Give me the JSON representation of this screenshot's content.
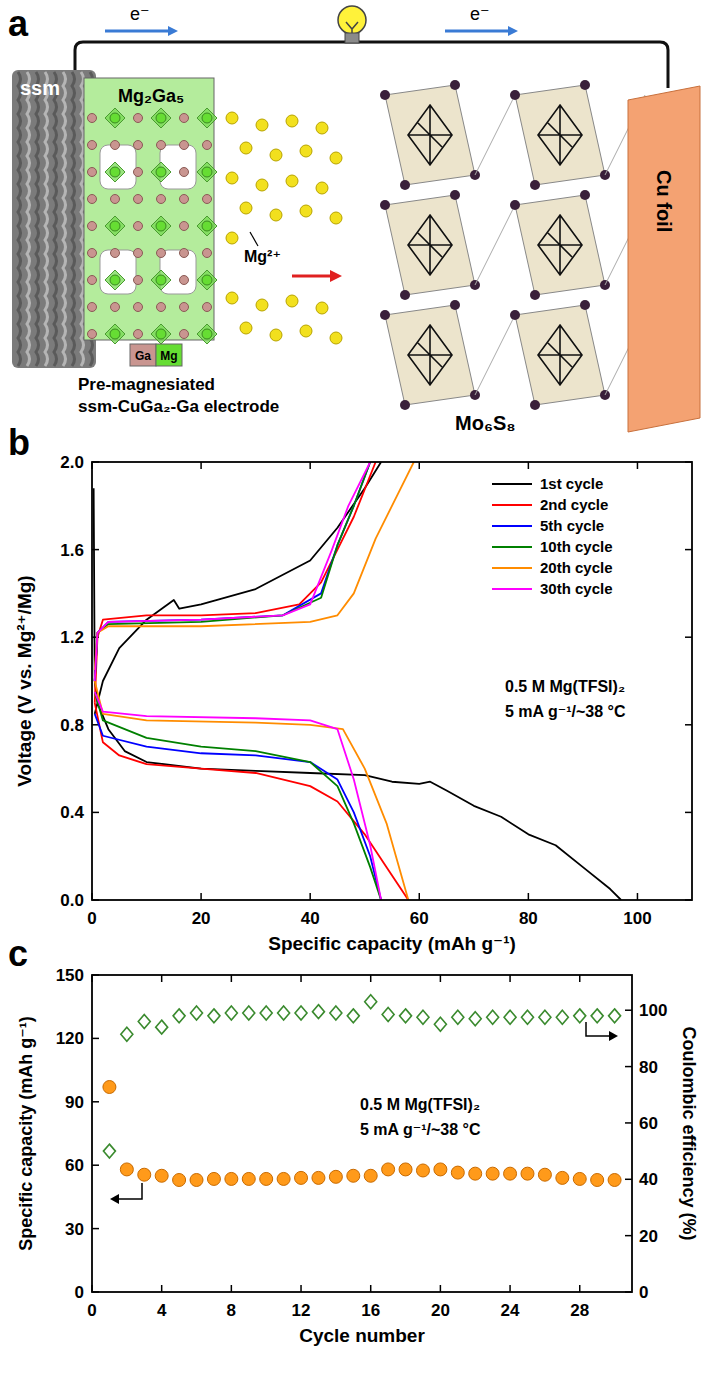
{
  "diagram": {
    "panel_label": "a",
    "electrons": [
      "e⁻",
      "e⁻"
    ],
    "mesh": "ssm",
    "phase": "Mg₂Ga₅",
    "atom_legend": [
      "Ga",
      "Mg"
    ],
    "electrode_label": [
      "Pre-magnesiated",
      "ssm-CuGa₂-Ga electrode"
    ],
    "ion": "Mg²⁺",
    "cathode": "Mo₆S₈",
    "collector": "Cu foil"
  },
  "chart_data": [
    {
      "panel_label": "b",
      "type": "line",
      "x_label": "Specific capacity (mAh g⁻¹)",
      "y_label": "Voltage (V vs. Mg²⁺/Mg)",
      "annotations": [
        "0.5 M Mg(TFSI)₂",
        "5 mA g⁻¹/~38 °C"
      ],
      "xlim": [
        0,
        110
      ],
      "ylim": [
        0,
        2.0
      ],
      "xticks": [
        0,
        20,
        40,
        60,
        80,
        100
      ],
      "yticks": [
        {
          "value": 0,
          "label": "0.0"
        },
        0.4,
        0.8,
        1.2,
        1.6,
        {
          "value": 2.0,
          "label": "2.0"
        }
      ],
      "legend": "top-right",
      "line_style": "solid",
      "series": [
        {
          "name": "1st cycle",
          "color": "#000000",
          "x": [
            0.3,
            0.5,
            1,
            3,
            6,
            10,
            20,
            30,
            40,
            50,
            55,
            60,
            62,
            65,
            70,
            75,
            80,
            85,
            90,
            95,
            97,
            97,
            0.5,
            2,
            5,
            10,
            15,
            16,
            20,
            30,
            40,
            45,
            50,
            53
          ],
          "values": [
            1.88,
            1.0,
            0.9,
            0.78,
            0.68,
            0.63,
            0.6,
            0.59,
            0.58,
            0.57,
            0.54,
            0.53,
            0.54,
            0.5,
            0.43,
            0.38,
            0.3,
            0.25,
            0.15,
            0.05,
            0.0,
            null,
            0.85,
            1.0,
            1.15,
            1.28,
            1.37,
            1.33,
            1.35,
            1.42,
            1.55,
            1.7,
            1.88,
            2.0
          ]
        },
        {
          "name": "2nd cycle",
          "color": "#ff0000",
          "x": [
            0.5,
            2,
            5,
            10,
            20,
            30,
            40,
            45,
            50,
            54,
            58,
            58,
            0.5,
            1,
            2,
            10,
            20,
            30,
            38,
            42,
            45,
            48,
            52
          ],
          "values": [
            0.9,
            0.72,
            0.66,
            0.62,
            0.6,
            0.58,
            0.52,
            0.45,
            0.3,
            0.15,
            0.0,
            null,
            0.9,
            1.2,
            1.28,
            1.3,
            1.3,
            1.31,
            1.35,
            1.45,
            1.6,
            1.75,
            2.0
          ]
        },
        {
          "name": "5th cycle",
          "color": "#0000ff",
          "x": [
            0.5,
            2,
            10,
            20,
            30,
            40,
            45,
            48,
            51,
            53,
            53,
            0.5,
            1,
            3,
            20,
            35,
            42,
            45,
            48,
            51
          ],
          "values": [
            0.85,
            0.75,
            0.7,
            0.67,
            0.66,
            0.63,
            0.55,
            0.4,
            0.2,
            0.0,
            null,
            1.0,
            1.22,
            1.27,
            1.28,
            1.3,
            1.4,
            1.62,
            1.8,
            2.0
          ]
        },
        {
          "name": "10th cycle",
          "color": "#008000",
          "x": [
            0.5,
            2,
            10,
            20,
            30,
            40,
            45,
            48,
            51,
            53,
            53,
            0.5,
            1,
            3,
            20,
            35,
            42,
            45,
            48,
            51
          ],
          "values": [
            0.95,
            0.82,
            0.74,
            0.7,
            0.68,
            0.63,
            0.52,
            0.35,
            0.15,
            0.0,
            null,
            1.0,
            1.22,
            1.26,
            1.27,
            1.3,
            1.38,
            1.62,
            1.8,
            2.0
          ]
        },
        {
          "name": "20th cycle",
          "color": "#ff8c00",
          "x": [
            0.5,
            2,
            10,
            30,
            40,
            46,
            50,
            54,
            58,
            58,
            0.5,
            1,
            3,
            20,
            40,
            45,
            48,
            52,
            56,
            59
          ],
          "values": [
            1.0,
            0.85,
            0.82,
            0.81,
            0.8,
            0.78,
            0.6,
            0.35,
            0.0,
            null,
            1.05,
            1.22,
            1.25,
            1.25,
            1.27,
            1.3,
            1.4,
            1.65,
            1.85,
            2.0
          ]
        },
        {
          "name": "30th cycle",
          "color": "#ff00ff",
          "x": [
            0.5,
            2,
            10,
            30,
            40,
            45,
            48,
            51,
            53,
            53,
            0.5,
            1,
            3,
            20,
            35,
            40,
            44,
            47,
            51
          ],
          "values": [
            0.95,
            0.86,
            0.84,
            0.83,
            0.82,
            0.78,
            0.55,
            0.25,
            0.0,
            null,
            1.0,
            1.22,
            1.27,
            1.28,
            1.3,
            1.35,
            1.6,
            1.8,
            2.0
          ]
        }
      ]
    },
    {
      "panel_label": "c",
      "type": "scatter",
      "x_label": "Cycle number",
      "y_label": "Specific capacity (mAh g⁻¹)",
      "y2_label": "Coulombic efficiency (%)",
      "annotations": [
        "0.5 M Mg(TFSI)₂",
        "5 mA g⁻¹/~38 °C"
      ],
      "xlim": [
        0,
        31
      ],
      "ylim": [
        0,
        150
      ],
      "y2lim": [
        0,
        112.5
      ],
      "xticks": [
        0,
        4,
        8,
        12,
        16,
        20,
        24,
        28
      ],
      "yticks": [
        0,
        30,
        60,
        90,
        120,
        150
      ],
      "y2ticks": [
        0,
        20,
        40,
        60,
        80,
        100
      ],
      "x": [
        1,
        2,
        3,
        4,
        5,
        6,
        7,
        8,
        9,
        10,
        11,
        12,
        13,
        14,
        15,
        16,
        17,
        18,
        19,
        20,
        21,
        22,
        23,
        24,
        25,
        26,
        27,
        28,
        29,
        30
      ],
      "series": [
        {
          "color": "#ff9a1a",
          "marker": "circle",
          "values": [
            97,
            58,
            55.5,
            55,
            53,
            53,
            53.5,
            53.5,
            53.5,
            53.5,
            53.5,
            54,
            54,
            54.5,
            55,
            55,
            58,
            58,
            57.5,
            58,
            56.5,
            56,
            56,
            56,
            56,
            55.5,
            54,
            53.5,
            53,
            53
          ]
        },
        {
          "color": "#3a8a2e",
          "marker": "diamond",
          "axis": "y2",
          "values": [
            50,
            91.5,
            96,
            94,
            98,
            99,
            98,
            99,
            99,
            99,
            99,
            99,
            99.5,
            99,
            98,
            103,
            98.5,
            98,
            97.5,
            95,
            97.5,
            97,
            97.5,
            97.5,
            97.5,
            97.5,
            97.5,
            98,
            98,
            98
          ]
        }
      ]
    }
  ]
}
